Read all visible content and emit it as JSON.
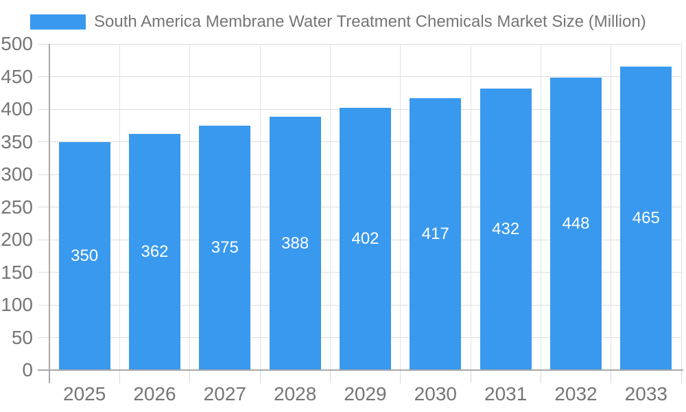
{
  "chart_data": {
    "type": "bar",
    "title": "South America Membrane Water Treatment Chemicals Market Size (Million)",
    "categories": [
      "2025",
      "2026",
      "2027",
      "2028",
      "2029",
      "2030",
      "2031",
      "2032",
      "2033"
    ],
    "values": [
      350,
      362,
      375,
      388,
      402,
      417,
      432,
      448,
      465
    ],
    "xlabel": "",
    "ylabel": "",
    "ylim": [
      0,
      500
    ],
    "yticks": [
      0,
      50,
      100,
      150,
      200,
      250,
      300,
      350,
      400,
      450,
      500
    ],
    "grid": true,
    "legend_position": "top-left",
    "value_labels": "centered-inside-bars",
    "colors": {
      "bar": "#3999ee",
      "grid": "#e0e0e0",
      "axis": "#a8a8a8",
      "tick_text": "#757575",
      "title_text": "#757575",
      "value_text": "#ffffff",
      "background": "#ffffff"
    }
  }
}
